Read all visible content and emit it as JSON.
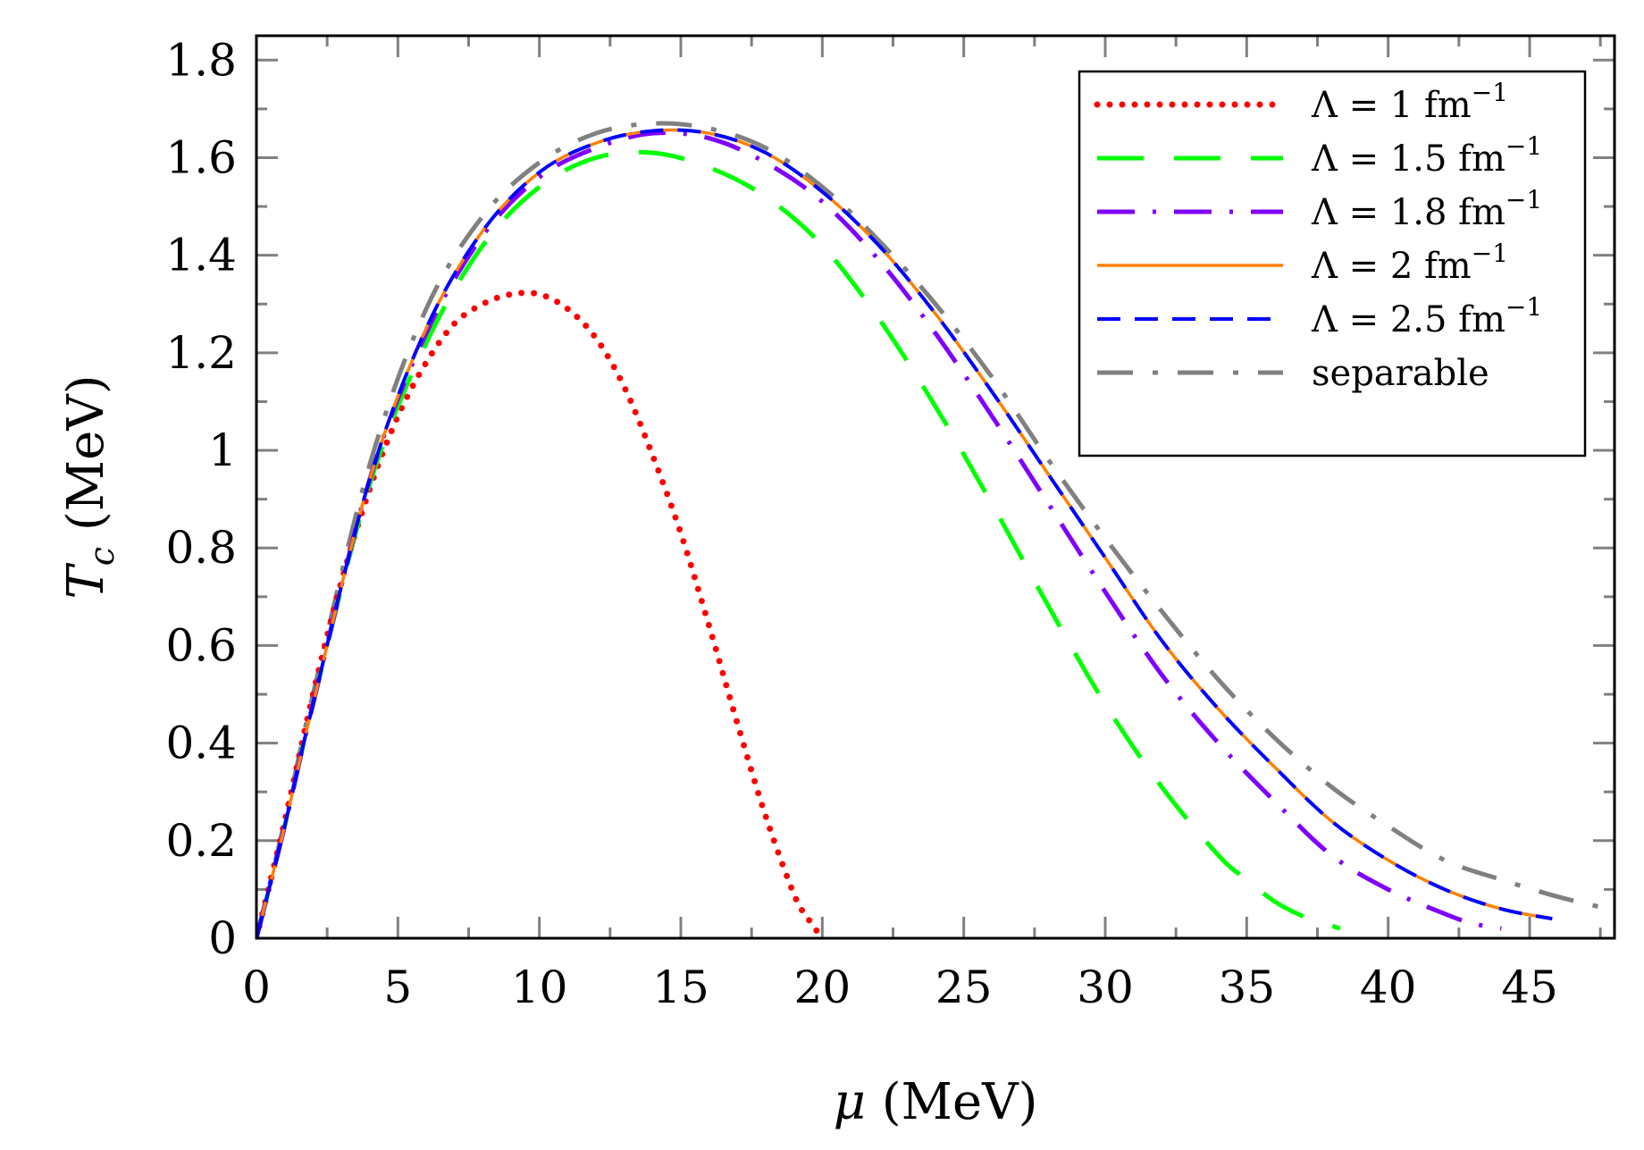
{
  "chart_data": {
    "type": "line",
    "xlabel_symbol": "μ",
    "xlabel_unit": "(MeV)",
    "ylabel_symbol": "T",
    "ylabel_subscript": "c",
    "ylabel_unit": "(MeV)",
    "xlim": [
      0,
      48
    ],
    "ylim": [
      0,
      1.85
    ],
    "xticks": [
      0,
      5,
      10,
      15,
      20,
      25,
      30,
      35,
      40,
      45
    ],
    "xtick_labels": [
      "0",
      "5",
      "10",
      "15",
      "20",
      "25",
      "30",
      "35",
      "40",
      "45"
    ],
    "yticks": [
      0,
      0.2,
      0.4,
      0.6,
      0.8,
      1.0,
      1.2,
      1.4,
      1.6,
      1.8
    ],
    "ytick_labels": [
      "0",
      "0.2",
      "0.4",
      "0.6",
      "0.8",
      "1",
      "1.2",
      "1.4",
      "1.6",
      "1.8"
    ],
    "legend_position": "top-right",
    "series": [
      {
        "name": "Λ = 1 fm⁻¹",
        "label_main": "Λ = 1 fm",
        "label_sup": "−1",
        "color": "#ff0000",
        "style": "dotted",
        "x": [
          0,
          1,
          2,
          3,
          4,
          5,
          6,
          7,
          8,
          9,
          10,
          11,
          12,
          13,
          14,
          15,
          16,
          17,
          18,
          19,
          19.5,
          20
        ],
        "y": [
          0,
          0.24,
          0.5,
          0.73,
          0.92,
          1.07,
          1.18,
          1.26,
          1.3,
          1.32,
          1.32,
          1.29,
          1.23,
          1.13,
          0.99,
          0.83,
          0.64,
          0.44,
          0.25,
          0.09,
          0.04,
          0.0
        ]
      },
      {
        "name": "Λ = 1.5 fm⁻¹",
        "label_main": "Λ = 1.5 fm",
        "label_sup": "−1",
        "color": "#00ff00",
        "style": "longdash",
        "x": [
          0,
          1,
          2,
          4,
          6,
          8,
          10,
          12,
          14,
          16,
          18,
          20,
          22,
          24,
          26,
          28,
          30,
          32,
          34,
          35,
          36,
          37,
          38.3
        ],
        "y": [
          0,
          0.23,
          0.48,
          0.93,
          1.22,
          1.42,
          1.54,
          1.6,
          1.61,
          1.58,
          1.52,
          1.42,
          1.27,
          1.09,
          0.89,
          0.68,
          0.48,
          0.31,
          0.17,
          0.12,
          0.075,
          0.045,
          0.02
        ]
      },
      {
        "name": "Λ = 1.8 fm⁻¹",
        "label_main": "Λ = 1.8 fm",
        "label_sup": "−1",
        "color": "#8000ff",
        "style": "dashdot",
        "x": [
          0,
          1,
          2,
          4,
          6,
          8,
          10,
          12,
          14,
          16,
          18,
          20,
          22,
          24,
          26,
          28,
          30,
          32,
          34,
          36,
          38,
          40,
          42,
          43,
          44
        ],
        "y": [
          0,
          0.23,
          0.48,
          0.94,
          1.24,
          1.44,
          1.56,
          1.62,
          1.65,
          1.64,
          1.59,
          1.51,
          1.39,
          1.24,
          1.07,
          0.89,
          0.71,
          0.54,
          0.4,
          0.28,
          0.17,
          0.1,
          0.05,
          0.03,
          0.02
        ]
      },
      {
        "name": "Λ = 2 fm⁻¹",
        "label_main": "Λ = 2 fm",
        "label_sup": "−1",
        "color": "#ff8000",
        "style": "solid",
        "x": [
          0,
          1,
          2,
          4,
          6,
          8,
          10,
          12,
          14,
          16,
          18,
          20,
          22,
          24,
          26,
          28,
          30,
          32,
          34,
          36,
          38,
          40,
          42,
          44,
          45.8
        ],
        "y": [
          0,
          0.23,
          0.48,
          0.94,
          1.25,
          1.45,
          1.57,
          1.63,
          1.655,
          1.65,
          1.61,
          1.53,
          1.42,
          1.28,
          1.12,
          0.95,
          0.78,
          0.61,
          0.47,
          0.35,
          0.24,
          0.16,
          0.1,
          0.06,
          0.04
        ]
      },
      {
        "name": "Λ = 2.5 fm⁻¹",
        "label_main": "Λ = 2.5 fm",
        "label_sup": "−1",
        "color": "#0000ff",
        "style": "dashed",
        "x": [
          0,
          1,
          2,
          4,
          6,
          8,
          10,
          12,
          14,
          16,
          18,
          20,
          22,
          24,
          26,
          28,
          30,
          32,
          34,
          36,
          38,
          40,
          42,
          44,
          45.8
        ],
        "y": [
          0,
          0.23,
          0.48,
          0.94,
          1.25,
          1.45,
          1.57,
          1.63,
          1.655,
          1.65,
          1.61,
          1.53,
          1.42,
          1.28,
          1.12,
          0.95,
          0.78,
          0.61,
          0.47,
          0.35,
          0.24,
          0.16,
          0.1,
          0.06,
          0.04
        ]
      },
      {
        "name": "separable",
        "label_main": "separable",
        "label_sup": "",
        "color": "#808080",
        "style": "dashdot-gray",
        "x": [
          0,
          1,
          2,
          4,
          6,
          8,
          10,
          12,
          14,
          16,
          18,
          20,
          22,
          24,
          26,
          28,
          30,
          32,
          34,
          36,
          38,
          40,
          42,
          44,
          46,
          47.8
        ],
        "y": [
          0,
          0.24,
          0.5,
          0.97,
          1.29,
          1.48,
          1.59,
          1.65,
          1.67,
          1.66,
          1.62,
          1.54,
          1.43,
          1.3,
          1.15,
          0.98,
          0.82,
          0.67,
          0.53,
          0.41,
          0.31,
          0.23,
          0.16,
          0.12,
          0.085,
          0.06
        ]
      }
    ]
  }
}
